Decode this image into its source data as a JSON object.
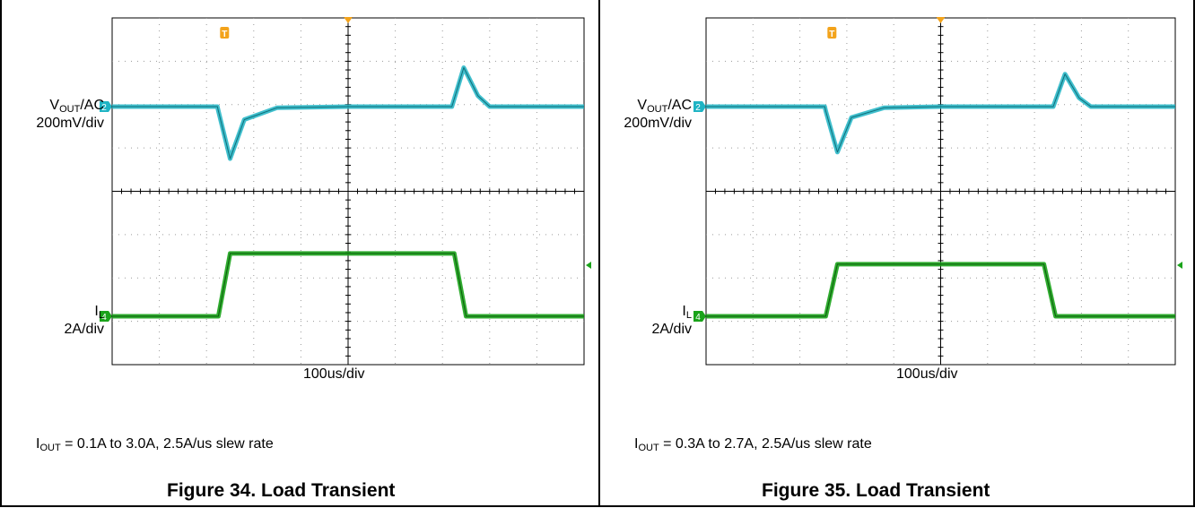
{
  "colors": {
    "vout_trace": "#1fb4c4",
    "il_trace": "#1aa31a",
    "trigger_marker": "#f3a31b",
    "grid": "#9a9a9a"
  },
  "figures": [
    {
      "title": "Figure 34. Load Transient",
      "caption_var": "I",
      "caption_sub": "OUT",
      "caption_rest": " = 0.1A to 3.0A, 2.5A/us slew rate",
      "vout_label_var": "V",
      "vout_label_sub": "OUT",
      "vout_label_rest": "/AC",
      "vout_scale": "200mV/div",
      "il_label_var": "I",
      "il_label_sub": "L",
      "il_scale": "2A/div",
      "timebase": "100us/div",
      "channel_markers": [
        "2",
        "4"
      ],
      "trigger_marker": "T"
    },
    {
      "title": "Figure 35. Load Transient",
      "caption_var": "I",
      "caption_sub": "OUT",
      "caption_rest": " = 0.3A to 2.7A, 2.5A/us slew rate",
      "vout_label_var": "V",
      "vout_label_sub": "OUT",
      "vout_label_rest": "/AC",
      "vout_scale": "200mV/div",
      "il_label_var": "I",
      "il_label_sub": "L",
      "il_scale": "2A/div",
      "timebase": "100us/div",
      "channel_markers": [
        "2",
        "4"
      ],
      "trigger_marker": "T"
    }
  ],
  "chart_data": [
    {
      "type": "line",
      "title": "Figure 34. Load Transient",
      "xlabel": "100us/div",
      "x_unit": "us",
      "xlim": [
        -500,
        500
      ],
      "grid": true,
      "series": [
        {
          "name": "VOUT/AC",
          "unit": "mV",
          "scale_per_div": "200mV/div",
          "x": [
            -500,
            -277,
            -275,
            -250,
            -220,
            -150,
            0,
            220,
            245,
            275,
            300,
            500
          ],
          "y": [
            0,
            0,
            -20,
            -240,
            -60,
            -5,
            0,
            0,
            180,
            50,
            0,
            0
          ]
        },
        {
          "name": "IL",
          "unit": "A",
          "scale_per_div": "2A/div",
          "x": [
            -500,
            -275,
            -250,
            225,
            250,
            500
          ],
          "y": [
            0.1,
            0.1,
            3.0,
            3.0,
            0.1,
            0.1
          ]
        }
      ]
    },
    {
      "type": "line",
      "title": "Figure 35. Load Transient",
      "xlabel": "100us/div",
      "x_unit": "us",
      "xlim": [
        -500,
        500
      ],
      "grid": true,
      "series": [
        {
          "name": "VOUT/AC",
          "unit": "mV",
          "scale_per_div": "200mV/div",
          "x": [
            -500,
            -247,
            -245,
            -220,
            -190,
            -120,
            0,
            240,
            265,
            295,
            320,
            500
          ],
          "y": [
            0,
            0,
            -20,
            -210,
            -50,
            -5,
            0,
            0,
            150,
            40,
            0,
            0
          ]
        },
        {
          "name": "IL",
          "unit": "A",
          "scale_per_div": "2A/div",
          "x": [
            -500,
            -245,
            -220,
            220,
            245,
            500
          ],
          "y": [
            0.3,
            0.3,
            2.7,
            2.7,
            0.3,
            0.3
          ]
        }
      ]
    }
  ]
}
